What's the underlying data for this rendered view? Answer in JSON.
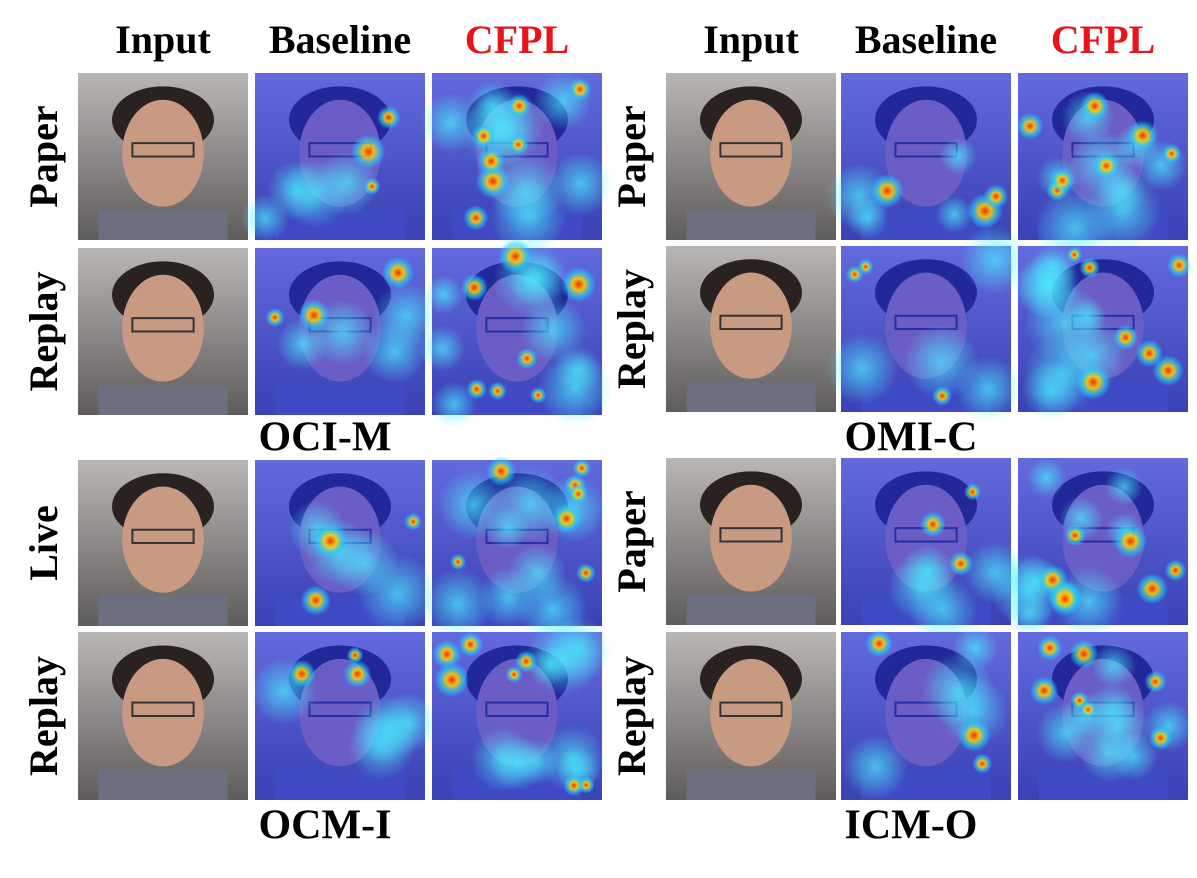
{
  "columns": {
    "left": [
      "Input",
      "Baseline",
      "CFPL"
    ],
    "right": [
      "Input",
      "Baseline",
      "CFPL"
    ]
  },
  "panels": [
    {
      "title": "OCI-M",
      "rows": [
        "Paper",
        "Replay"
      ]
    },
    {
      "title": "OMI-C",
      "rows": [
        "Paper",
        "Replay"
      ]
    },
    {
      "title": "OCM-I",
      "rows": [
        "Live",
        "Replay"
      ]
    },
    {
      "title": "ICM-O",
      "rows": [
        "Paper",
        "Replay"
      ]
    }
  ]
}
